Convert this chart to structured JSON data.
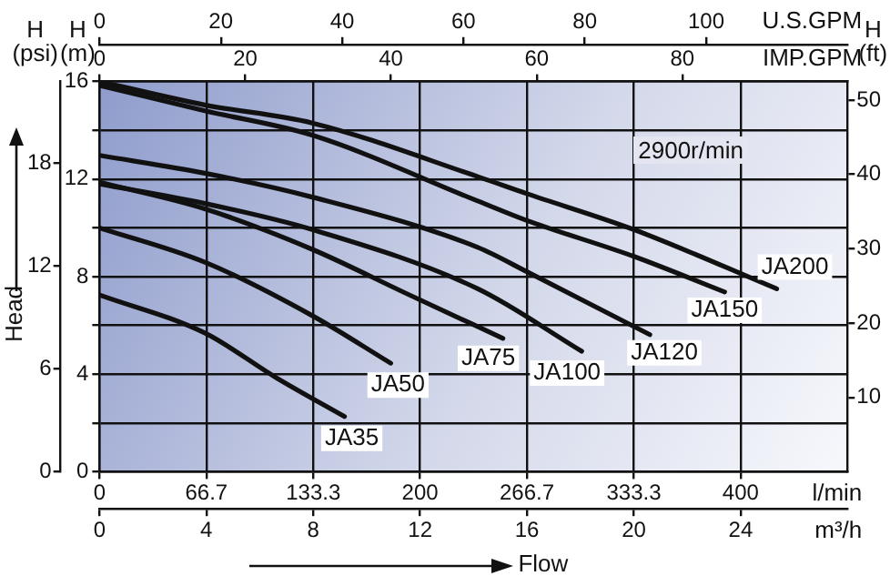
{
  "chart_data": {
    "type": "line",
    "xlabel": "m³/h",
    "x2label": "U.S.GPM",
    "ylabel": "H (m)",
    "y2label": "H (ft)",
    "y3label": "H (psi)",
    "annotations": [
      "2900r/min",
      "Head",
      "Flow",
      "l/min",
      "IMP.GPM",
      "0",
      "66.7",
      "133.3",
      "200",
      "266.7",
      "333.3",
      "400",
      "0",
      "20",
      "40",
      "60",
      "80"
    ],
    "xlim": [
      0,
      28
    ],
    "xticks": [
      0,
      4,
      8,
      12,
      16,
      20,
      24
    ],
    "x2lim": [
      0,
      123.3
    ],
    "x2ticks": [
      0,
      20,
      40,
      60,
      80,
      100
    ],
    "ylim": [
      0,
      16
    ],
    "yticks": [
      0,
      {
        "value": 2,
        "label": null
      },
      4,
      {
        "value": 6,
        "label": null
      },
      8,
      {
        "value": 10,
        "label": null
      },
      12,
      {
        "value": 14,
        "label": null
      },
      16
    ],
    "y2lim": [
      0,
      52.5
    ],
    "y2ticks": [
      10,
      20,
      30,
      40,
      50
    ],
    "y3lim": [
      0,
      22.75
    ],
    "y3ticks": [
      0,
      6,
      12,
      18
    ],
    "grid": true,
    "legend": false,
    "marker": "none",
    "line_style": "solid",
    "series": [
      {
        "name": "JA35",
        "color": "#111111",
        "x": [
          0,
          3.94,
          6.62,
          9.17
        ],
        "values": [
          7.25,
          5.69,
          3.85,
          2.26
        ]
      },
      {
        "name": "JA50",
        "color": "#111111",
        "x": [
          0,
          3.94,
          7.96,
          10.9
        ],
        "values": [
          10,
          8.59,
          6.4,
          4.45
        ]
      },
      {
        "name": "JA75",
        "color": "#111111",
        "x": [
          0,
          3.94,
          7.96,
          11.5,
          15.1
        ],
        "values": [
          11.87,
          10.78,
          9.12,
          7.3,
          5.47
        ]
      },
      {
        "name": "JA100",
        "color": "#111111",
        "x": [
          0,
          3.94,
          7.96,
          14.16,
          18.05
        ],
        "values": [
          11.8,
          11,
          9.93,
          7.5,
          4.94
        ]
      },
      {
        "name": "JA120",
        "color": "#111111",
        "x": [
          0,
          3.94,
          7.96,
          14.16,
          16,
          20.6
        ],
        "values": [
          12.97,
          12.24,
          11.26,
          9.2,
          8.2,
          5.62
        ]
      },
      {
        "name": "JA150",
        "color": "#111111",
        "x": [
          0,
          3.94,
          7.96,
          14.16,
          16,
          20,
          23.4
        ],
        "values": [
          15.84,
          14.8,
          13.8,
          11.1,
          10.3,
          8.83,
          7.37
        ]
      },
      {
        "name": "JA200",
        "color": "#111111",
        "x": [
          0,
          3.94,
          7.96,
          14.16,
          16,
          20,
          25.35
        ],
        "values": [
          16,
          15.04,
          14.3,
          12.1,
          11.4,
          9.93,
          7.5
        ]
      }
    ]
  }
}
